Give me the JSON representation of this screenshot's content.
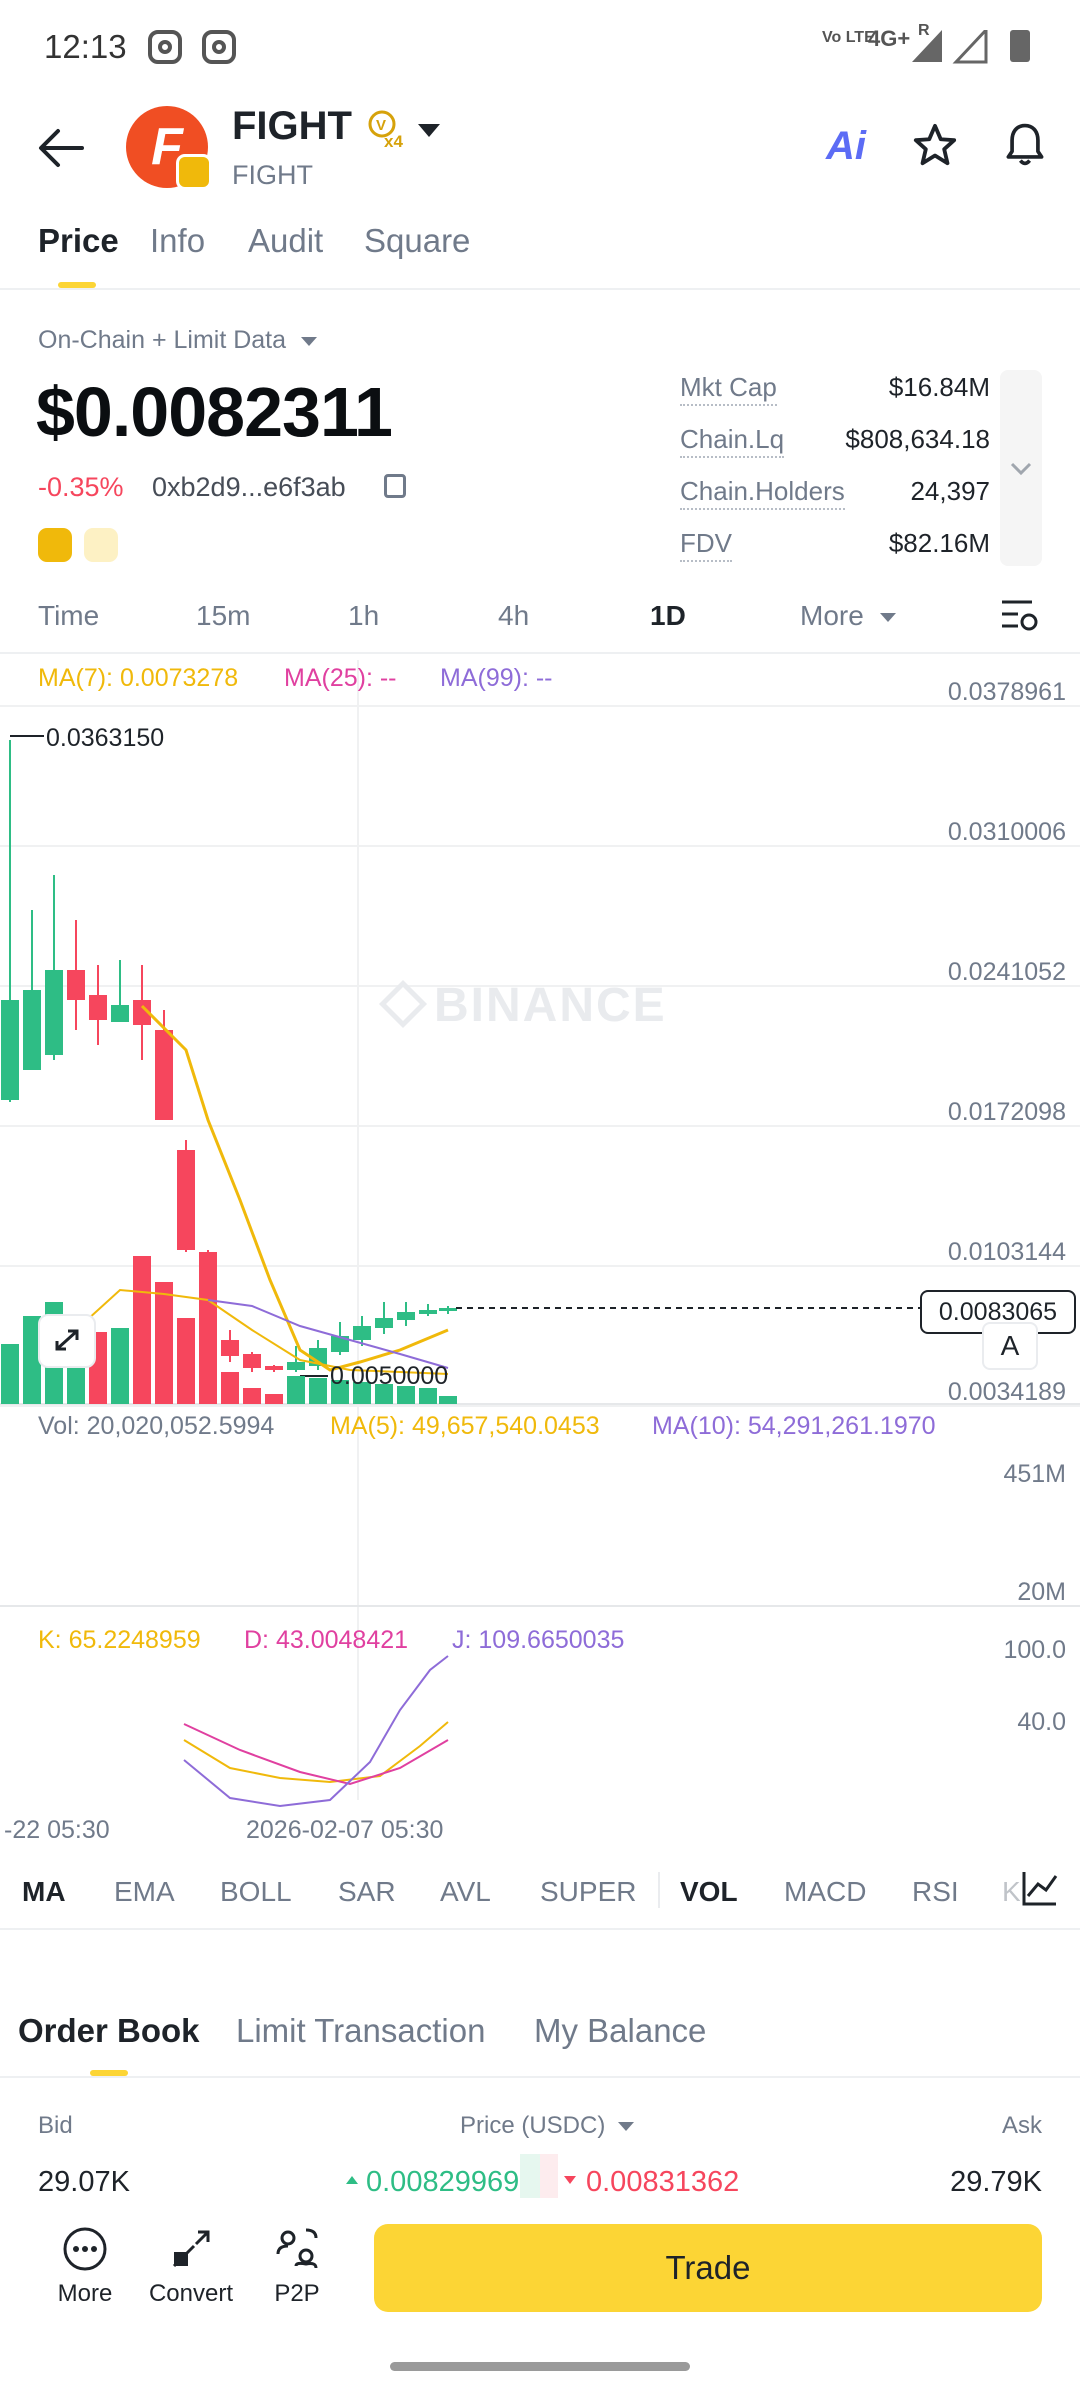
{
  "status_bar": {
    "time": "12:13",
    "network": "4G+",
    "roaming": "R",
    "volte": "Vo LTE"
  },
  "header": {
    "token_name": "FIGHT",
    "token_subtitle": "FIGHT",
    "badge_text": "x4",
    "ai_label": "Ai"
  },
  "tabs": [
    {
      "label": "Price",
      "active": true
    },
    {
      "label": "Info",
      "active": false
    },
    {
      "label": "Audit",
      "active": false
    },
    {
      "label": "Square",
      "active": false
    }
  ],
  "price_section": {
    "source_label": "On-Chain + Limit Data",
    "price": "$0.0082311",
    "change": "-0.35%",
    "contract": "0xb2d9...e6f3ab"
  },
  "stats": [
    {
      "label": "Mkt Cap",
      "value": "$16.84M"
    },
    {
      "label": "Chain.Lq",
      "value": "$808,634.18"
    },
    {
      "label": "Chain.Holders",
      "value": "24,397"
    },
    {
      "label": "FDV",
      "value": "$82.16M"
    }
  ],
  "intervals": [
    {
      "label": "Time",
      "active": false
    },
    {
      "label": "15m",
      "active": false
    },
    {
      "label": "1h",
      "active": false
    },
    {
      "label": "4h",
      "active": false
    },
    {
      "label": "1D",
      "active": true
    },
    {
      "label": "More",
      "active": false
    }
  ],
  "chart": {
    "ma_labels": {
      "ma7": "MA(7): 0.0073278",
      "ma25": "MA(25): --",
      "ma99": "MA(99): --"
    },
    "y_axis": [
      "0.0378961",
      "0.0310006",
      "0.0241052",
      "0.0172098",
      "0.0103144",
      "0.0034189"
    ],
    "high_label": "0.0363150",
    "low_label": "0.0050000",
    "current_price_tag": "0.0083065",
    "watermark": "BINANCE",
    "autoscale_label": "A",
    "vol_labels": {
      "vol": "Vol: 20,020,052.5994",
      "ma5": "MA(5): 49,657,540.0453",
      "ma10": "MA(10): 54,291,261.1970"
    },
    "vol_axis": [
      "451M",
      "20M"
    ],
    "kdj_labels": {
      "k": "K: 65.2248959",
      "d": "D: 43.0048421",
      "j": "J: 109.6650035"
    },
    "kdj_axis": [
      "100.0",
      "40.0"
    ],
    "x_labels": [
      "-22 05:30",
      "2026-02-07 05:30"
    ]
  },
  "indicators": [
    {
      "label": "MA",
      "active": true
    },
    {
      "label": "EMA",
      "active": false
    },
    {
      "label": "BOLL",
      "active": false
    },
    {
      "label": "SAR",
      "active": false
    },
    {
      "label": "AVL",
      "active": false
    },
    {
      "label": "SUPER",
      "active": false
    },
    {
      "label": "VOL",
      "active": true
    },
    {
      "label": "MACD",
      "active": false
    },
    {
      "label": "RSI",
      "active": false
    },
    {
      "label": "K",
      "active": false
    }
  ],
  "order_book": {
    "tabs": [
      {
        "label": "Order Book",
        "active": true
      },
      {
        "label": "Limit Transaction",
        "active": false
      },
      {
        "label": "My Balance",
        "active": false
      }
    ],
    "bid_header": "Bid",
    "price_header": "Price (USDC)",
    "ask_header": "Ask",
    "bid_amount": "29.07K",
    "bid_price": "0.00829969",
    "ask_price": "0.00831362",
    "ask_amount": "29.79K"
  },
  "bottom_bar": {
    "more_label": "More",
    "convert_label": "Convert",
    "p2p_label": "P2P",
    "trade_label": "Trade"
  },
  "colors": {
    "up": "#2ebd85",
    "down": "#f6465d",
    "accent": "#fcd535",
    "ma7": "#f0b90b",
    "ma25": "#e040a0",
    "ma99": "#8e6cd8"
  }
}
